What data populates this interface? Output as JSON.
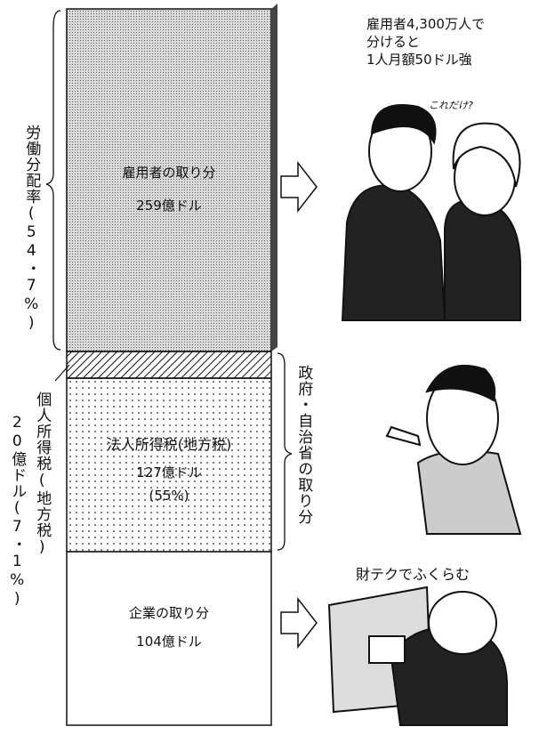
{
  "segments": [
    {
      "label": "雇用者の取り分",
      "amount": "259億ドル"
    },
    {
      "label": "法人所得税(地方税)",
      "amount": "127億ドル",
      "share": "(55%)"
    },
    {
      "label": "企業の取り分",
      "amount": "104億ドル"
    }
  ],
  "left_notes": {
    "labor_share": "労働分配率(54・7%)",
    "income_tax": "個人所得税(地方税)",
    "income_tax_amount": "20億ドル(7・1%)"
  },
  "right_note": "政府・自治省の取り分",
  "captions": {
    "employees": [
      "雇用者4,300万人で",
      "分けると",
      "1人月額50ドル強"
    ],
    "speech": "これだけ?",
    "company": "財テクでふくらむ"
  }
}
